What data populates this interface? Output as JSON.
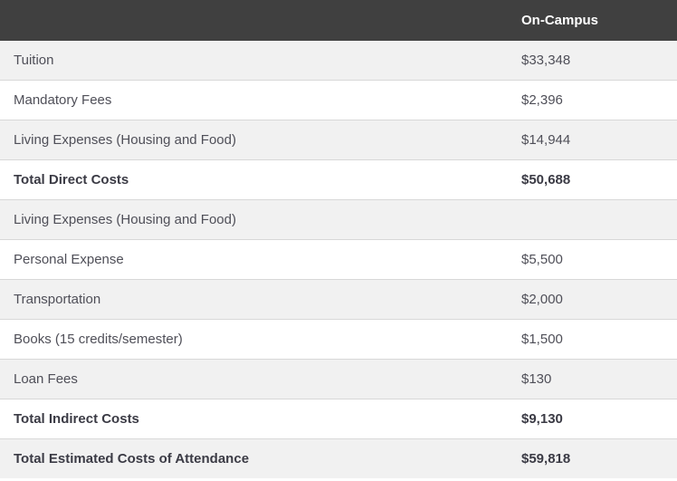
{
  "header": {
    "label_column": "",
    "value_column": "On-Campus"
  },
  "colors": {
    "header_bg": "#404040",
    "header_text": "#ffffff",
    "row_alt_bg": "#f1f1f1",
    "row_bg": "#ffffff",
    "divider": "#d8d8d8",
    "text": "#4f4f58",
    "total_text": "#3b3b45"
  },
  "table": {
    "rows": [
      {
        "label": "Tuition",
        "value": "$33,348"
      },
      {
        "label": "Mandatory Fees",
        "value": "$2,396"
      },
      {
        "label": "Living Expenses (Housing and Food)",
        "value": "$14,944"
      },
      {
        "label": "Total Direct Costs",
        "value": "$50,688"
      },
      {
        "label": "Living Expenses (Housing and Food)",
        "value": ""
      },
      {
        "label": "Personal Expense",
        "value": "$5,500"
      },
      {
        "label": "Transportation",
        "value": "$2,000"
      },
      {
        "label": "Books (15 credits/semester)",
        "value": "$1,500"
      },
      {
        "label": "Loan Fees",
        "value": "$130"
      },
      {
        "label": "Total Indirect Costs",
        "value": "$9,130"
      },
      {
        "label": "Total Estimated Costs of Attendance",
        "value": "$59,818"
      }
    ]
  }
}
